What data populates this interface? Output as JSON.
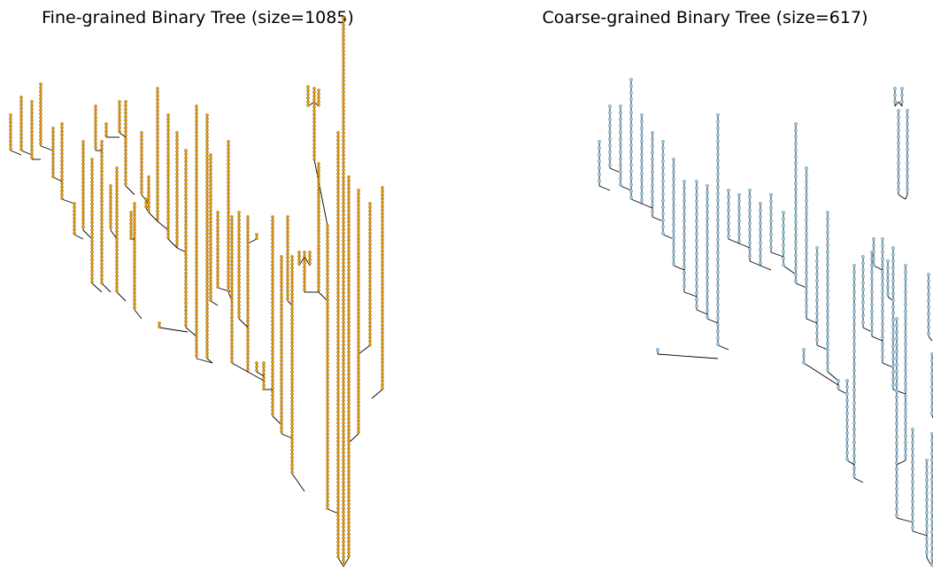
{
  "panels": [
    {
      "title": "Fine-grained Binary Tree (size=1085)",
      "node_color": "#f5a000",
      "node_stroke": "#7a5000",
      "edge_color": "#000000"
    },
    {
      "title": "Coarse-grained Binary Tree (size=617)",
      "node_color": "#9ecae1",
      "node_stroke": "#5a8fb0",
      "edge_color": "#000000"
    }
  ]
}
